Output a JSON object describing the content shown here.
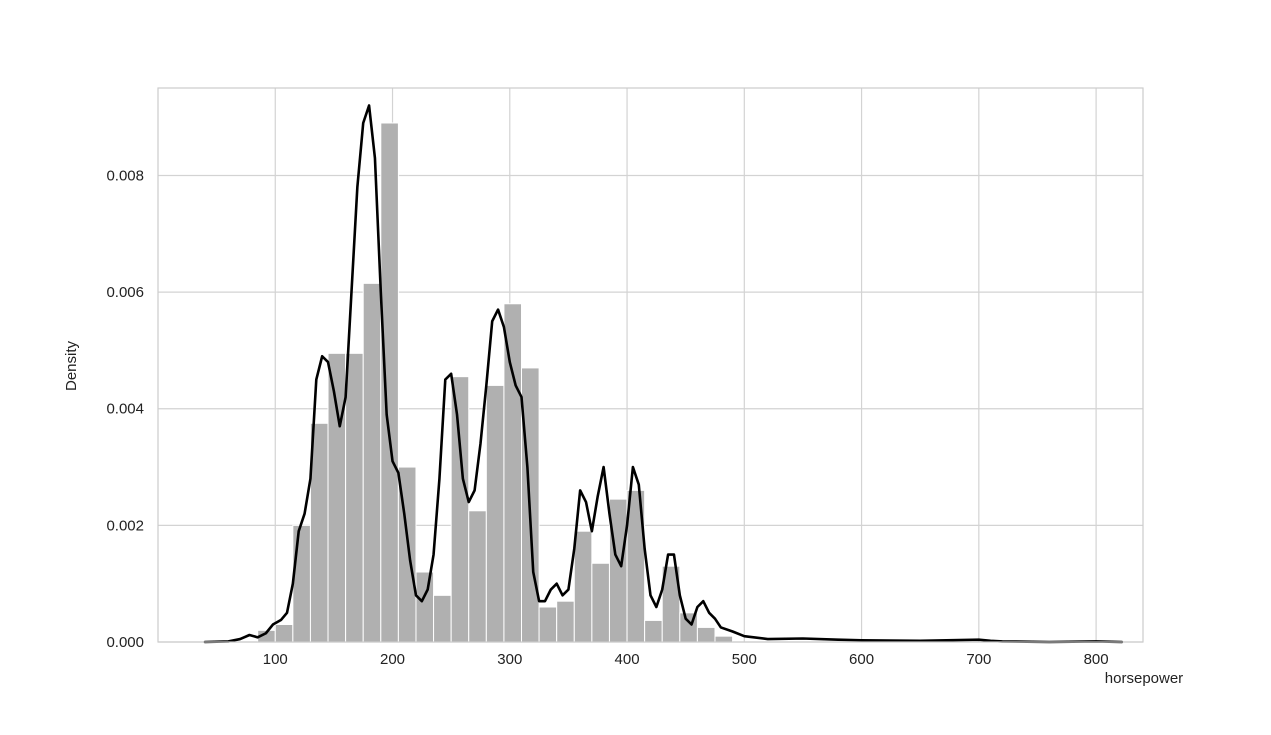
{
  "chart_data": {
    "type": "histogram",
    "title": "",
    "xlabel": "horsepower",
    "ylabel": "Density",
    "xlim": [
      0,
      840
    ],
    "ylim": [
      0,
      0.0095
    ],
    "xticks": [
      "100",
      "200",
      "300",
      "400",
      "500",
      "600",
      "700",
      "800"
    ],
    "yticks": [
      "0.000",
      "0.002",
      "0.004",
      "0.006",
      "0.008"
    ],
    "grid": true,
    "bar_color": "#b0b0b0",
    "line_color": "#000000",
    "bins": {
      "edges": [
        85,
        100,
        115,
        130,
        145,
        160,
        175,
        190,
        205,
        220,
        235,
        250,
        265,
        280,
        295,
        310,
        325,
        340,
        355,
        370,
        385,
        400,
        415,
        430,
        445,
        460,
        475,
        490
      ],
      "densities": [
        0.0002,
        0.0003,
        0.002,
        0.00375,
        0.00495,
        0.00495,
        0.00615,
        0.0089,
        0.003,
        0.0012,
        0.0008,
        0.00455,
        0.00225,
        0.0044,
        0.0058,
        0.0047,
        0.0006,
        0.0007,
        0.0019,
        0.00135,
        0.00245,
        0.0026,
        0.00037,
        0.0013,
        0.0005,
        0.00025,
        0.0001
      ]
    },
    "kde": {
      "x": [
        40,
        60,
        70,
        78,
        85,
        92,
        98,
        105,
        110,
        115,
        120,
        125,
        130,
        135,
        140,
        145,
        150,
        155,
        160,
        165,
        170,
        175,
        180,
        185,
        190,
        195,
        200,
        205,
        210,
        215,
        220,
        225,
        230,
        235,
        240,
        245,
        250,
        255,
        260,
        265,
        270,
        275,
        280,
        285,
        290,
        295,
        300,
        305,
        310,
        315,
        320,
        325,
        330,
        335,
        340,
        345,
        350,
        355,
        360,
        365,
        370,
        375,
        380,
        385,
        390,
        395,
        400,
        405,
        410,
        415,
        420,
        425,
        430,
        435,
        440,
        445,
        450,
        455,
        460,
        465,
        470,
        475,
        480,
        490,
        500,
        520,
        550,
        580,
        600,
        650,
        700,
        710,
        720,
        760,
        800,
        822
      ],
      "y": [
        0.0,
        1e-05,
        5e-05,
        0.00012,
        8e-05,
        0.00015,
        0.0003,
        0.00038,
        0.0005,
        0.001,
        0.0019,
        0.0022,
        0.0028,
        0.0045,
        0.0049,
        0.0048,
        0.0043,
        0.0037,
        0.0042,
        0.006,
        0.0078,
        0.0089,
        0.0092,
        0.0083,
        0.006,
        0.0039,
        0.0031,
        0.0029,
        0.0022,
        0.0014,
        0.0008,
        0.0007,
        0.0009,
        0.0015,
        0.0028,
        0.0045,
        0.0046,
        0.0039,
        0.0028,
        0.0024,
        0.0026,
        0.0034,
        0.0044,
        0.0055,
        0.0057,
        0.0054,
        0.0048,
        0.0044,
        0.0042,
        0.003,
        0.0012,
        0.0007,
        0.0007,
        0.0009,
        0.001,
        0.0008,
        0.0009,
        0.0016,
        0.0026,
        0.0024,
        0.0019,
        0.0025,
        0.003,
        0.0022,
        0.0015,
        0.0013,
        0.002,
        0.003,
        0.0027,
        0.0016,
        0.0008,
        0.0006,
        0.0009,
        0.0015,
        0.0015,
        0.0008,
        0.0004,
        0.0003,
        0.0006,
        0.0007,
        0.0005,
        0.0004,
        0.00025,
        0.00018,
        0.0001,
        5e-05,
        6e-05,
        4e-05,
        3e-05,
        2e-05,
        4e-05,
        2e-05,
        1e-05,
        0.0,
        1e-05,
        0.0
      ]
    }
  }
}
